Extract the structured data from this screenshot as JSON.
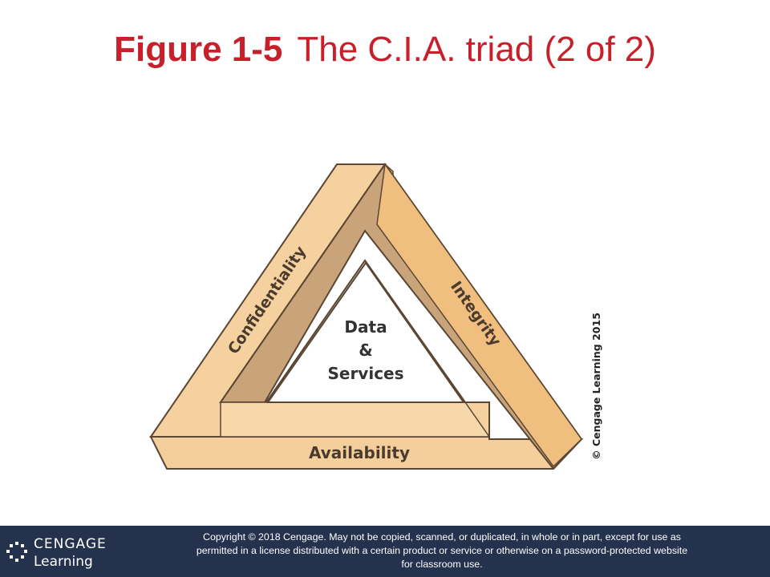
{
  "slide": {
    "title_number": "Figure 1-5",
    "title_text": "The C.I.A. triad (2 of 2)"
  },
  "diagram": {
    "sides": {
      "confidentiality": "Confidentiality",
      "integrity": "Integrity",
      "availability": "Availability"
    },
    "center": {
      "line1": "Data",
      "line2": "&",
      "line3": "Services"
    },
    "credit": "© Cengage Learning 2015",
    "colors": {
      "light_face": "#f6d4a2",
      "mid_face": "#efbd7c",
      "shadow_face": "#c8a37a",
      "edge": "#5a4632",
      "title_red": "#c8202a",
      "footer_bg": "#24324d"
    }
  },
  "footer": {
    "logo_word1": "CENGAGE",
    "logo_word2": "Learning",
    "copyright_line1": "Copyright © 2018 Cengage. May not be copied, scanned, or duplicated, in whole or in part, except for use as",
    "copyright_line2": "permitted in a license distributed with a certain product or service or otherwise on a password-protected website",
    "copyright_line3": "for classroom use."
  }
}
